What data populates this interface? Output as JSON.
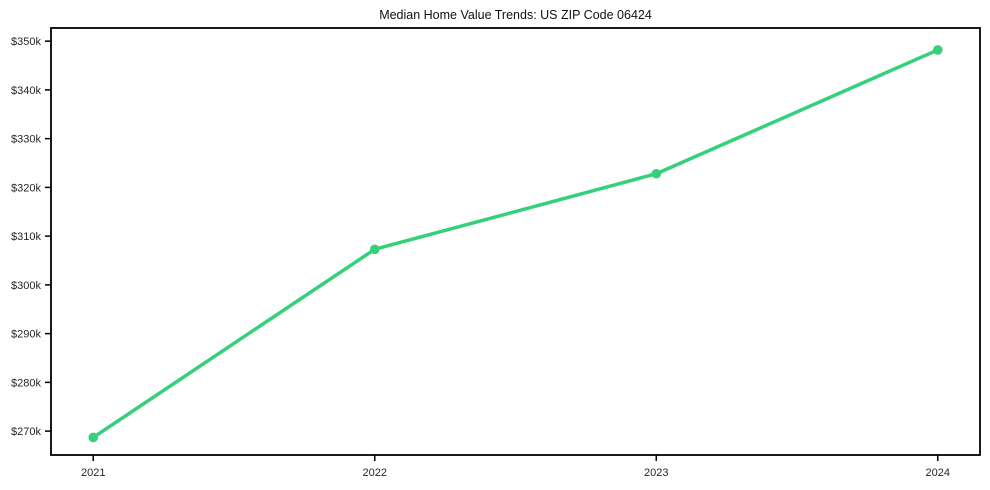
{
  "chart_data": {
    "type": "line",
    "title": "Median Home Value Trends: US ZIP Code 06424",
    "xlabel": "",
    "ylabel": "",
    "x": [
      2021,
      2022,
      2023,
      2024
    ],
    "x_tick_labels": [
      "2021",
      "2022",
      "2023",
      "2024"
    ],
    "values": [
      268700,
      307300,
      322800,
      348200
    ],
    "y_tick_values": [
      270000,
      280000,
      290000,
      300000,
      310000,
      320000,
      330000,
      340000,
      350000
    ],
    "y_tick_labels": [
      "$270k",
      "$280k",
      "$290k",
      "$300k",
      "$310k",
      "$320k",
      "$330k",
      "$340k",
      "$350k"
    ],
    "xlim": [
      2020.85,
      2024.15
    ],
    "ylim": [
      265100,
      352700
    ],
    "grid": false,
    "legend": null,
    "marker": "circle",
    "line_color": "#35d07a",
    "axis_color": "#000000",
    "tick_label_color": "#262626",
    "background": "#ffffff"
  }
}
